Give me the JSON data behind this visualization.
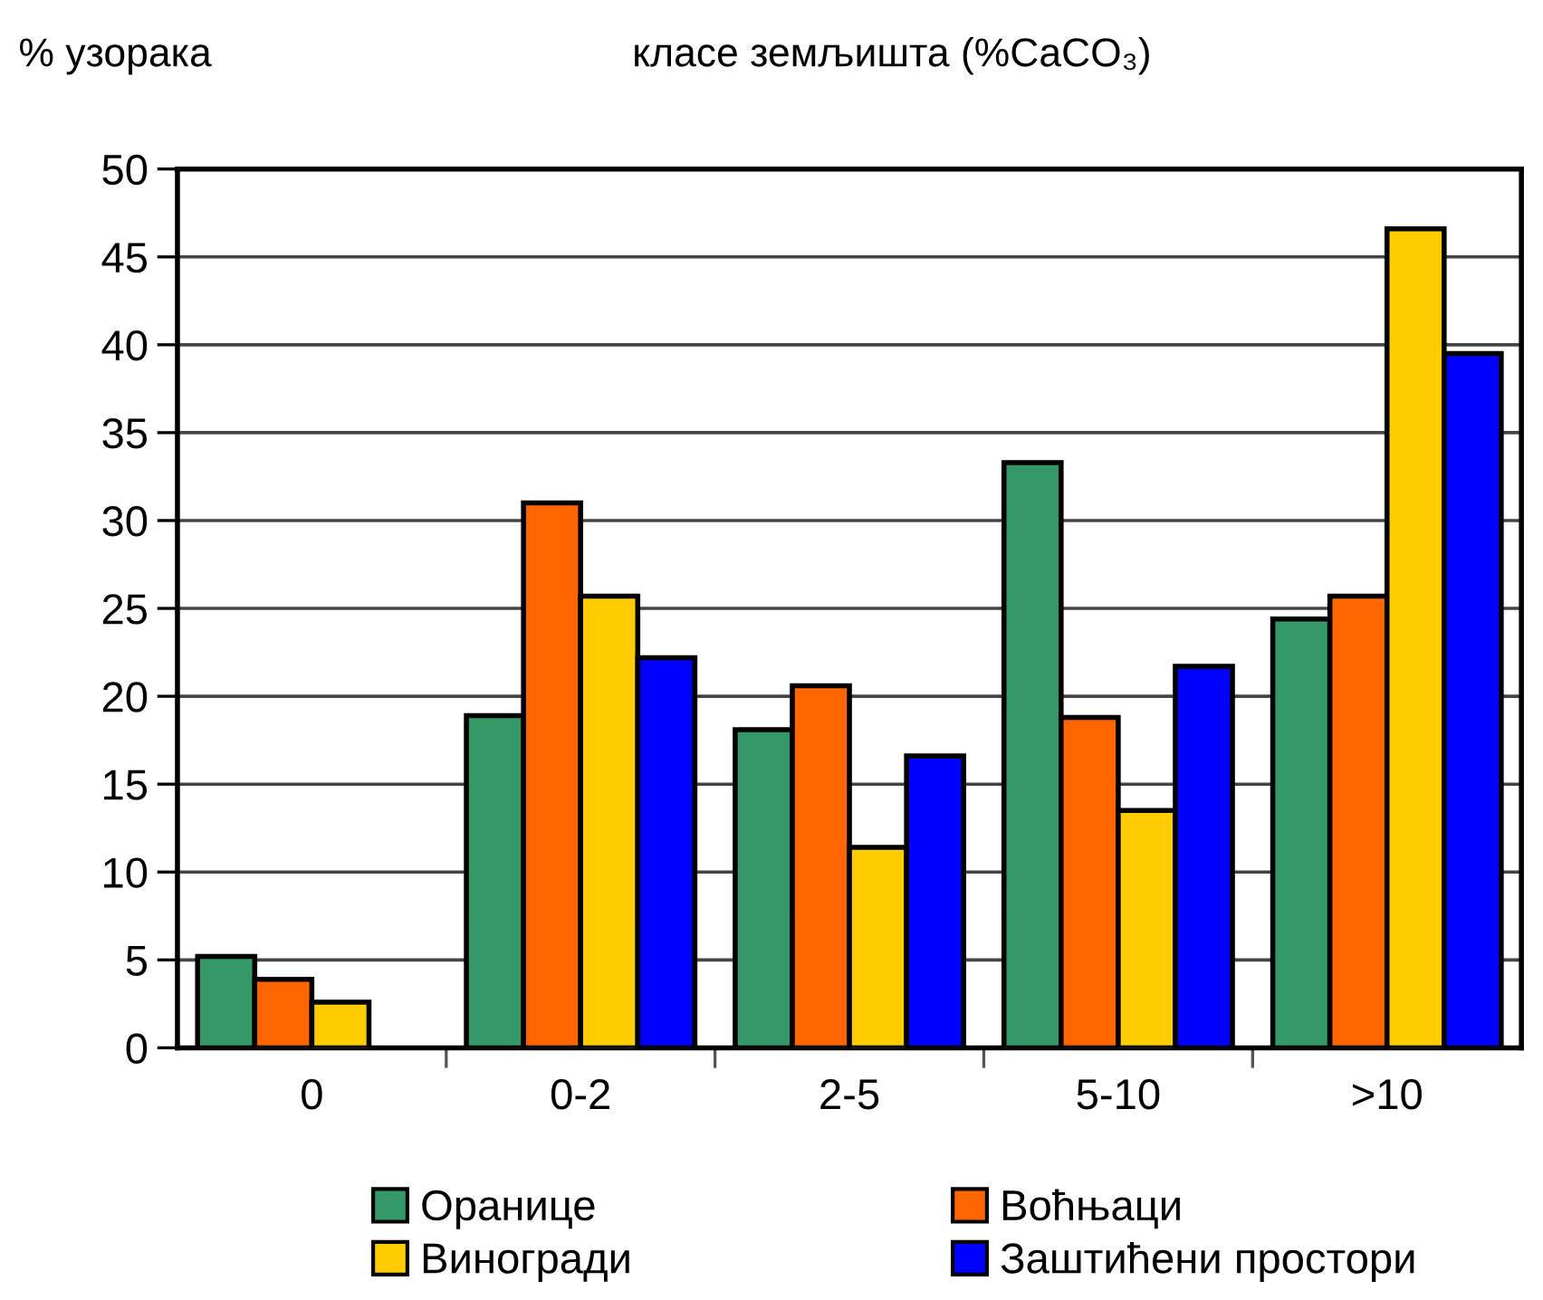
{
  "chart_data": {
    "type": "bar",
    "title": "класе земљишта (%CaCO₃)",
    "ylabel": "% узорака",
    "categories": [
      "0",
      "0-2",
      "2-5",
      "5-10",
      ">10"
    ],
    "series": [
      {
        "name": "Оранице",
        "color": "#339966",
        "values": [
          5.2,
          18.9,
          18.1,
          33.3,
          24.4
        ]
      },
      {
        "name": "Воћњаци",
        "color": "#ff6600",
        "values": [
          3.9,
          31.0,
          20.6,
          18.8,
          25.7
        ]
      },
      {
        "name": "Виногради",
        "color": "#ffcc00",
        "values": [
          2.6,
          25.7,
          11.4,
          13.5,
          46.6
        ]
      },
      {
        "name": "Заштићени простори",
        "color": "#0000ff",
        "values": [
          null,
          22.2,
          16.6,
          21.7,
          39.5
        ]
      }
    ],
    "ylim": [
      0,
      50
    ],
    "yticks": [
      0,
      5,
      10,
      15,
      20,
      25,
      30,
      35,
      40,
      45,
      50
    ],
    "grid": "y",
    "legend": "bottom"
  }
}
